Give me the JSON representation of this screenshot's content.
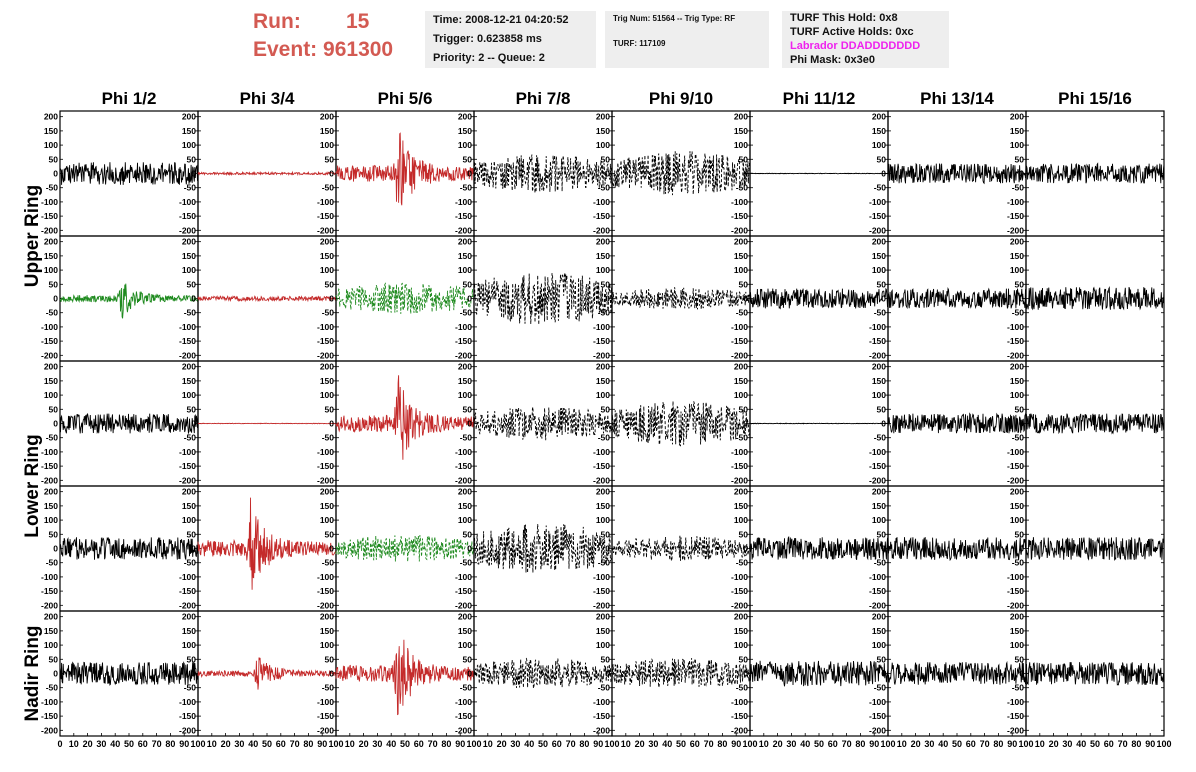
{
  "header": {
    "run_label": "Run:",
    "run_value": "15",
    "event_label": "Event:",
    "event_value": "961300",
    "time": "Time: 2008-12-21 04:20:52",
    "trigger": "Trigger: 0.623858 ms",
    "priority": "Priority: 2 -- Queue: 2",
    "trig_num": "Trig Num: 51564 -- Trig Type: RF",
    "turf": "TURF: 117109",
    "turf_hold": "TURF This Hold: 0x8",
    "turf_active": "TURF Active Holds: 0xc",
    "labrador": "Labrador DDADDDDDDD",
    "phi_mask": "Phi Mask: 0x3e0"
  },
  "colors": {
    "red": "#c42a2a",
    "green": "#1e8a1e",
    "black": "#000000",
    "header_red": "#d35a52",
    "pink": "#ee22ee"
  },
  "chart_data": {
    "type": "line",
    "title": "",
    "columns": [
      "Phi 1/2",
      "Phi 3/4",
      "Phi 5/6",
      "Phi 7/8",
      "Phi 9/10",
      "Phi 11/12",
      "Phi 13/14",
      "Phi 15/16"
    ],
    "rows": [
      "Upper Ring",
      "Lower Ring",
      "Nadir Ring"
    ],
    "ylim": [
      -220,
      220
    ],
    "yticks": [
      -200,
      -150,
      -100,
      -50,
      0,
      50,
      100,
      150,
      200
    ],
    "xlim": [
      0,
      100
    ],
    "xticks": [
      0,
      10,
      20,
      30,
      40,
      50,
      60,
      70,
      80,
      90,
      100
    ],
    "panels": [
      [
        "black",
        "red",
        "red",
        "black-dashed",
        "black-dashed",
        "black-flat",
        "black",
        "black"
      ],
      [
        "green",
        "red",
        "green-dashed",
        "black-dashed",
        "black-dashed",
        "black",
        "black",
        "black"
      ],
      [
        "black",
        "red-flat",
        "red",
        "black-dashed",
        "black-dashed",
        "black-flat",
        "black",
        "black"
      ],
      [
        "black",
        "red",
        "green-dashed",
        "black-dashed",
        "black-dashed",
        "black",
        "black",
        "black"
      ],
      [
        "black",
        "red",
        "red",
        "black-dashed",
        "black-dashed",
        "black",
        "black",
        "black"
      ]
    ],
    "amplitudes": [
      [
        40,
        4,
        160,
        70,
        80,
        0,
        35,
        35
      ],
      [
        65,
        8,
        55,
        95,
        40,
        35,
        35,
        40
      ],
      [
        35,
        0,
        160,
        60,
        80,
        0,
        35,
        35
      ],
      [
        40,
        160,
        50,
        90,
        45,
        40,
        40,
        40
      ],
      [
        40,
        60,
        160,
        55,
        55,
        45,
        40,
        40
      ]
    ],
    "pulse_peaks": [
      [
        0,
        0,
        45,
        0,
        0,
        0,
        0,
        0
      ],
      [
        45,
        0,
        0,
        0,
        0,
        0,
        0,
        0
      ],
      [
        0,
        0,
        45,
        0,
        0,
        0,
        0,
        0
      ],
      [
        0,
        38,
        0,
        0,
        0,
        0,
        0,
        0
      ],
      [
        0,
        43,
        45,
        0,
        0,
        0,
        0,
        0
      ]
    ]
  }
}
